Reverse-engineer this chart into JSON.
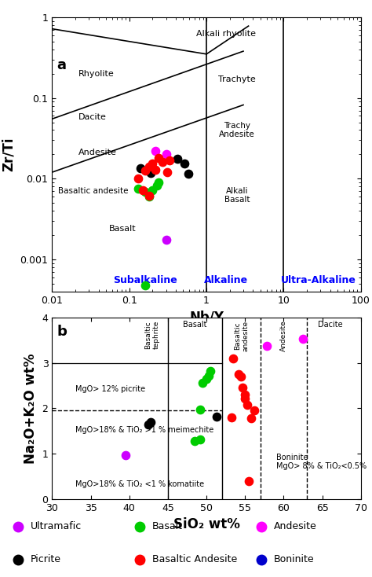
{
  "panel_a": {
    "xlabel": "Nb/Y",
    "ylabel": "Zr/Ti",
    "xlim": [
      0.01,
      100
    ],
    "ylim": [
      0.0004,
      1.0
    ],
    "scatter_ultramafic": {
      "x": [
        0.3
      ],
      "y": [
        0.00175
      ],
      "color": "#CC00FF",
      "size": 55
    },
    "scatter_basalt": {
      "x": [
        0.13,
        0.16,
        0.18,
        0.2,
        0.23,
        0.24,
        0.16
      ],
      "y": [
        0.0075,
        0.0068,
        0.006,
        0.0072,
        0.0082,
        0.009,
        0.00048
      ],
      "color": "#00CC00",
      "size": 55
    },
    "scatter_andesite": {
      "x": [
        0.22,
        0.3
      ],
      "y": [
        0.022,
        0.02
      ],
      "color": "#FF00FF",
      "size": 55
    },
    "scatter_picrite": {
      "x": [
        0.14,
        0.19,
        0.42,
        0.52,
        0.58
      ],
      "y": [
        0.0135,
        0.0118,
        0.0175,
        0.0155,
        0.0115
      ],
      "color": "#000000",
      "size": 55
    },
    "scatter_bas_andesite": {
      "x": [
        0.13,
        0.16,
        0.18,
        0.2,
        0.22,
        0.24,
        0.27,
        0.31,
        0.33,
        0.15,
        0.18
      ],
      "y": [
        0.01,
        0.0125,
        0.014,
        0.0155,
        0.013,
        0.018,
        0.016,
        0.012,
        0.017,
        0.0072,
        0.0062
      ],
      "color": "#FF0000",
      "size": 55
    }
  },
  "panel_b": {
    "xlabel": "SiO₂ wt%",
    "ylabel": "Na₂O+K₂O wt%",
    "xlim": [
      30,
      70
    ],
    "ylim": [
      0,
      4
    ],
    "horiz_solid_y": 3.0,
    "horiz_dashed_y": 1.95,
    "scatter_ultramafic": {
      "x": [
        39.5
      ],
      "y": [
        0.97
      ],
      "color": "#CC00FF",
      "size": 55
    },
    "scatter_basalt": {
      "x": [
        48.5,
        49.2,
        49.5,
        50.0,
        50.3,
        50.5,
        49.2
      ],
      "y": [
        1.28,
        1.32,
        2.56,
        2.65,
        2.72,
        2.82,
        1.97
      ],
      "color": "#00CC00",
      "size": 55
    },
    "scatter_andesite": {
      "x": [
        57.8,
        62.5
      ],
      "y": [
        3.38,
        3.52
      ],
      "color": "#FF00FF",
      "size": 55
    },
    "scatter_picrite": {
      "x": [
        42.5,
        42.8,
        51.3
      ],
      "y": [
        1.65,
        1.7,
        1.82
      ],
      "color": "#000000",
      "size": 55
    },
    "scatter_bas_andesite": {
      "x": [
        53.5,
        54.2,
        54.7,
        55.0,
        55.3,
        55.8,
        56.2,
        54.5,
        55.0,
        53.2,
        55.5
      ],
      "y": [
        3.1,
        2.75,
        2.45,
        2.22,
        2.08,
        1.78,
        1.95,
        2.7,
        2.3,
        1.8,
        0.4
      ],
      "color": "#FF0000",
      "size": 55
    }
  },
  "legend": [
    {
      "label": "Ultramafic",
      "color": "#CC00FF"
    },
    {
      "label": "Basalt",
      "color": "#00CC00"
    },
    {
      "label": "Andesite",
      "color": "#FF00FF"
    },
    {
      "label": "Picrite",
      "color": "#000000"
    },
    {
      "label": "Basaltic Andesite",
      "color": "#FF0000"
    },
    {
      "label": "Boninite",
      "color": "#0000CC"
    }
  ]
}
